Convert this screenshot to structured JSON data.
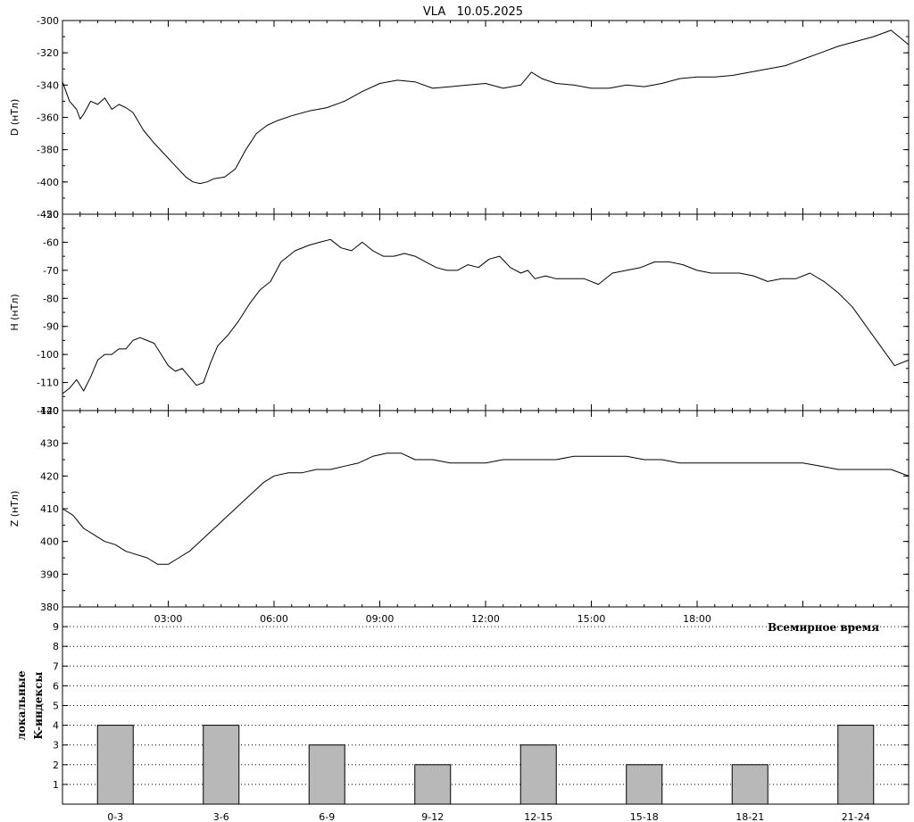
{
  "title": "VLA   10.05.2025",
  "colors": {
    "line": "#000000",
    "bar": "#b8b8b8",
    "background": "#ffffff",
    "grid": "#000000"
  },
  "x_axis": {
    "ticks": [
      "03:00",
      "06:00",
      "09:00",
      "12:00",
      "15:00",
      "18:00"
    ],
    "tick_hours": [
      3,
      6,
      9,
      12,
      15,
      18
    ],
    "range_hours": [
      0,
      24
    ],
    "label": "Всемирное время"
  },
  "chart_data": [
    {
      "type": "line",
      "ylabel": "D (нТл)",
      "ylim": [
        -420,
        -300
      ],
      "yticks": [
        -420,
        -400,
        -380,
        -360,
        -340,
        -320,
        -300
      ],
      "x": [
        0,
        0.2,
        0.4,
        0.5,
        0.6,
        0.8,
        1.0,
        1.2,
        1.4,
        1.6,
        1.8,
        2.0,
        2.3,
        2.6,
        2.9,
        3.2,
        3.5,
        3.7,
        3.9,
        4.1,
        4.3,
        4.6,
        4.9,
        5.2,
        5.5,
        5.8,
        6.1,
        6.5,
        7.0,
        7.5,
        8.0,
        8.5,
        9.0,
        9.5,
        10.0,
        10.5,
        11.0,
        11.5,
        12.0,
        12.5,
        13.0,
        13.3,
        13.6,
        14.0,
        14.5,
        15.0,
        15.5,
        16.0,
        16.5,
        17.0,
        17.5,
        18.0,
        18.5,
        19.0,
        19.5,
        20.0,
        20.5,
        21.0,
        21.5,
        22.0,
        22.5,
        23.0,
        23.5,
        24.0
      ],
      "values": [
        -338,
        -350,
        -355,
        -361,
        -358,
        -350,
        -352,
        -348,
        -355,
        -352,
        -354,
        -357,
        -368,
        -376,
        -383,
        -390,
        -397,
        -400,
        -401,
        -400,
        -398,
        -397,
        -392,
        -380,
        -370,
        -365,
        -362,
        -359,
        -356,
        -354,
        -350,
        -344,
        -339,
        -337,
        -338,
        -342,
        -341,
        -340,
        -339,
        -342,
        -340,
        -332,
        -336,
        -339,
        -340,
        -342,
        -342,
        -340,
        -341,
        -339,
        -336,
        -335,
        -335,
        -334,
        -332,
        -330,
        -328,
        -324,
        -320,
        -316,
        -313,
        -310,
        -306,
        -315
      ]
    },
    {
      "type": "line",
      "ylabel": "H (нТл)",
      "ylim": [
        -120,
        -50
      ],
      "yticks": [
        -120,
        -110,
        -100,
        -90,
        -80,
        -70,
        -60,
        -50
      ],
      "x": [
        0,
        0.2,
        0.4,
        0.6,
        0.8,
        1.0,
        1.2,
        1.4,
        1.6,
        1.8,
        2.0,
        2.2,
        2.4,
        2.6,
        2.8,
        3.0,
        3.2,
        3.4,
        3.6,
        3.8,
        4.0,
        4.2,
        4.4,
        4.7,
        5.0,
        5.3,
        5.6,
        5.9,
        6.2,
        6.6,
        7.0,
        7.3,
        7.6,
        7.9,
        8.2,
        8.5,
        8.8,
        9.1,
        9.4,
        9.7,
        10.0,
        10.3,
        10.6,
        10.9,
        11.2,
        11.5,
        11.8,
        12.1,
        12.4,
        12.7,
        13.0,
        13.2,
        13.4,
        13.7,
        14.0,
        14.4,
        14.8,
        15.2,
        15.6,
        16.0,
        16.4,
        16.8,
        17.2,
        17.6,
        18.0,
        18.4,
        18.8,
        19.2,
        19.6,
        20.0,
        20.4,
        20.8,
        21.2,
        21.6,
        22.0,
        22.4,
        22.8,
        23.2,
        23.6,
        24.0
      ],
      "values": [
        -114,
        -112,
        -109,
        -113,
        -108,
        -102,
        -100,
        -100,
        -98,
        -98,
        -95,
        -94,
        -95,
        -96,
        -100,
        -104,
        -106,
        -105,
        -108,
        -111,
        -110,
        -103,
        -97,
        -93,
        -88,
        -82,
        -77,
        -74,
        -67,
        -63,
        -61,
        -60,
        -59,
        -62,
        -63,
        -60,
        -63,
        -65,
        -65,
        -64,
        -65,
        -67,
        -69,
        -70,
        -70,
        -68,
        -69,
        -66,
        -65,
        -69,
        -71,
        -70,
        -73,
        -72,
        -73,
        -73,
        -73,
        -75,
        -71,
        -70,
        -69,
        -67,
        -67,
        -68,
        -70,
        -71,
        -71,
        -71,
        -72,
        -74,
        -73,
        -73,
        -71,
        -74,
        -78,
        -83,
        -90,
        -97,
        -104,
        -102
      ]
    },
    {
      "type": "line",
      "ylabel": "Z (нТл)",
      "ylim": [
        380,
        440
      ],
      "yticks": [
        380,
        390,
        400,
        410,
        420,
        430,
        440
      ],
      "x": [
        0,
        0.3,
        0.6,
        0.9,
        1.2,
        1.5,
        1.8,
        2.1,
        2.4,
        2.7,
        3.0,
        3.3,
        3.6,
        3.9,
        4.2,
        4.5,
        4.8,
        5.1,
        5.4,
        5.7,
        6.0,
        6.4,
        6.8,
        7.2,
        7.6,
        8.0,
        8.4,
        8.8,
        9.2,
        9.6,
        10.0,
        10.5,
        11.0,
        11.5,
        12.0,
        12.5,
        13.0,
        13.5,
        14.0,
        14.5,
        15.0,
        15.5,
        16.0,
        16.5,
        17.0,
        17.5,
        18.0,
        18.5,
        19.0,
        19.5,
        20.0,
        20.5,
        21.0,
        21.5,
        22.0,
        22.5,
        23.0,
        23.5,
        24.0
      ],
      "values": [
        410,
        408,
        404,
        402,
        400,
        399,
        397,
        396,
        395,
        393,
        393,
        395,
        397,
        400,
        403,
        406,
        409,
        412,
        415,
        418,
        420,
        421,
        421,
        422,
        422,
        423,
        424,
        426,
        427,
        427,
        425,
        425,
        424,
        424,
        424,
        425,
        425,
        425,
        425,
        426,
        426,
        426,
        426,
        425,
        425,
        424,
        424,
        424,
        424,
        424,
        424,
        424,
        424,
        423,
        422,
        422,
        422,
        422,
        420
      ]
    },
    {
      "type": "bar",
      "ylabel_lines": [
        "локальные",
        "K-индексы"
      ],
      "ylim": [
        0,
        10
      ],
      "yticks": [
        1,
        2,
        3,
        4,
        5,
        6,
        7,
        8,
        9
      ],
      "categories": [
        "0-3",
        "3-6",
        "6-9",
        "9-12",
        "12-15",
        "15-18",
        "18-21",
        "21-24"
      ],
      "values": [
        4,
        4,
        3,
        2,
        3,
        2,
        2,
        4
      ]
    }
  ]
}
